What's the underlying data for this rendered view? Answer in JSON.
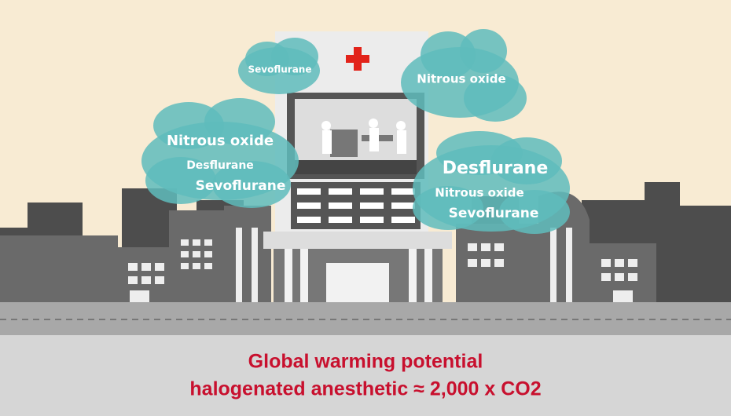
{
  "clouds": [
    {
      "labels": [
        "Sevoflurane"
      ]
    },
    {
      "labels": [
        "Nitrous oxide"
      ]
    },
    {
      "labels": [
        "Nitrous oxide",
        "Desflurane",
        "Sevoflurane"
      ]
    },
    {
      "labels": [
        "Desflurane",
        "Nitrous oxide",
        "Sevoflurane"
      ]
    }
  ],
  "caption": {
    "lines": [
      "Global warming potential",
      "halogenated anesthetic ≈ 2,000 x CO2"
    ]
  }
}
